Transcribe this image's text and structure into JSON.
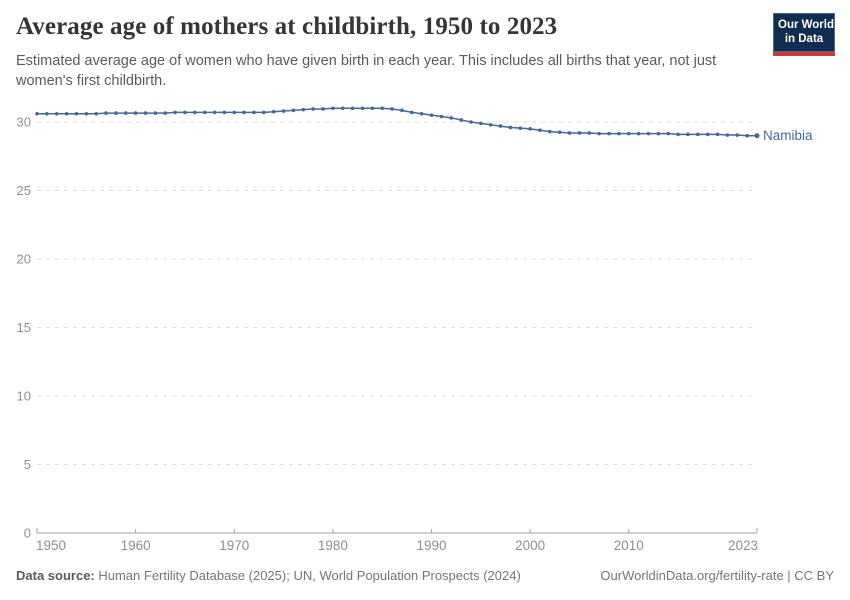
{
  "header": {
    "title": "Average age of mothers at childbirth, 1950 to 2023",
    "subtitle": "Estimated average age of women who have given birth in each year. This includes all births that year, not just women's first childbirth."
  },
  "logo": {
    "line1": "Our World",
    "line2": "in Data",
    "bg_color": "#0f2d4e",
    "accent_color": "#cc3b31"
  },
  "chart_data": {
    "type": "line",
    "title": "Average age of mothers at childbirth, 1950 to 2023",
    "x": {
      "start": 1950,
      "end": 2023,
      "step": 1
    },
    "series": [
      {
        "name": "Namibia",
        "color": "#45679f",
        "values": [
          30.6,
          30.6,
          30.6,
          30.6,
          30.6,
          30.6,
          30.6,
          30.65,
          30.65,
          30.65,
          30.65,
          30.65,
          30.65,
          30.65,
          30.7,
          30.7,
          30.7,
          30.7,
          30.7,
          30.7,
          30.7,
          30.7,
          30.7,
          30.7,
          30.75,
          30.8,
          30.85,
          30.9,
          30.95,
          30.95,
          31.0,
          31.0,
          31.0,
          31.0,
          31.0,
          31.0,
          30.95,
          30.85,
          30.7,
          30.6,
          30.5,
          30.4,
          30.3,
          30.15,
          30.0,
          29.9,
          29.8,
          29.7,
          29.6,
          29.55,
          29.5,
          29.4,
          29.3,
          29.25,
          29.2,
          29.2,
          29.2,
          29.15,
          29.15,
          29.15,
          29.15,
          29.15,
          29.15,
          29.15,
          29.15,
          29.1,
          29.1,
          29.1,
          29.1,
          29.1,
          29.05,
          29.05,
          29.0,
          29.0
        ]
      }
    ],
    "x_ticks": [
      1950,
      1960,
      1970,
      1980,
      1990,
      2000,
      2010,
      2023
    ],
    "y_ticks": [
      0,
      5,
      10,
      15,
      20,
      25,
      30
    ],
    "xlim": [
      1950,
      2023
    ],
    "ylim": [
      0,
      31.5
    ],
    "grid": "horizontal-dashed",
    "legend_position": "end-of-line",
    "grid_color": "#dcdcdc",
    "axis_color": "#a3a3a3",
    "tick_label_color": "#8f8f8f"
  },
  "footer": {
    "source_label": "Data source:",
    "source_text": " Human Fertility Database (2025); UN, World Population Prospects (2024)",
    "link_text": "OurWorldinData.org/fertility-rate | CC BY"
  }
}
